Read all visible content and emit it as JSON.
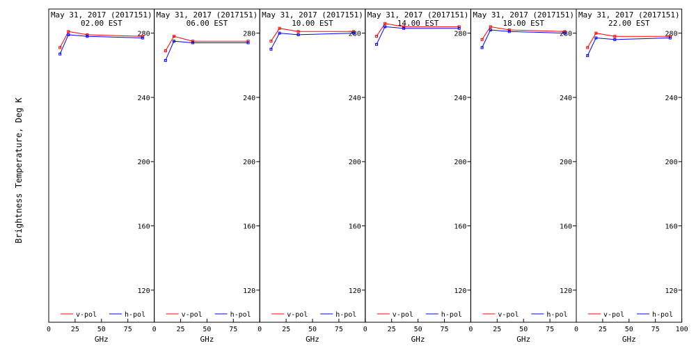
{
  "figure": {
    "ylabel": "Brightness Temperature, Deg K",
    "xlabel": "GHz"
  },
  "chart_data": {
    "type": "line",
    "xlim": [
      0,
      100
    ],
    "ylim": [
      100,
      295
    ],
    "xticks": [
      0,
      25,
      50,
      75,
      100
    ],
    "yticks": [
      120,
      160,
      200,
      240,
      280
    ],
    "series_colors": {
      "v-pol": "#ff0000",
      "h-pol": "#0000ff"
    },
    "legend": [
      "v-pol",
      "h-pol"
    ],
    "panels": [
      {
        "title1": "May 31, 2017 (2017151)",
        "title2": "02.00 EST",
        "series": [
          {
            "name": "v-pol",
            "x": [
              10.7,
              18.7,
              36.5,
              89
            ],
            "y": [
              271,
              281,
              279,
              278
            ]
          },
          {
            "name": "h-pol",
            "x": [
              10.7,
              18.7,
              36.5,
              89
            ],
            "y": [
              267,
              279,
              278,
              277
            ]
          }
        ]
      },
      {
        "title1": "May 31, 2017 (2017151)",
        "title2": "06.00 EST",
        "series": [
          {
            "name": "v-pol",
            "x": [
              10.7,
              18.7,
              36.5,
              89
            ],
            "y": [
              269,
              278,
              275,
              275
            ]
          },
          {
            "name": "h-pol",
            "x": [
              10.7,
              18.7,
              36.5,
              89
            ],
            "y": [
              263,
              275,
              274,
              274
            ]
          }
        ]
      },
      {
        "title1": "May 31, 2017 (2017151)",
        "title2": "10.00 EST",
        "series": [
          {
            "name": "v-pol",
            "x": [
              10.7,
              18.7,
              36.5,
              89
            ],
            "y": [
              275,
              283,
              281,
              281
            ]
          },
          {
            "name": "h-pol",
            "x": [
              10.7,
              18.7,
              36.5,
              89
            ],
            "y": [
              270,
              280,
              279,
              280
            ]
          }
        ]
      },
      {
        "title1": "May 31, 2017 (2017151)",
        "title2": "14.00 EST",
        "series": [
          {
            "name": "v-pol",
            "x": [
              10.7,
              18.7,
              36.5,
              89
            ],
            "y": [
              278,
              286,
              284,
              284
            ]
          },
          {
            "name": "h-pol",
            "x": [
              10.7,
              18.7,
              36.5,
              89
            ],
            "y": [
              273,
              284,
              283,
              283
            ]
          }
        ]
      },
      {
        "title1": "May 31, 2017 (2017151)",
        "title2": "18.00 EST",
        "series": [
          {
            "name": "v-pol",
            "x": [
              10.7,
              18.7,
              36.5,
              89
            ],
            "y": [
              276,
              284,
              282,
              281
            ]
          },
          {
            "name": "h-pol",
            "x": [
              10.7,
              18.7,
              36.5,
              89
            ],
            "y": [
              271,
              282,
              281,
              280
            ]
          }
        ]
      },
      {
        "title1": "May 31, 2017 (2017151)",
        "title2": "22.00 EST",
        "series": [
          {
            "name": "v-pol",
            "x": [
              10.7,
              18.7,
              36.5,
              89
            ],
            "y": [
              271,
              280,
              278,
              278
            ]
          },
          {
            "name": "h-pol",
            "x": [
              10.7,
              18.7,
              36.5,
              89
            ],
            "y": [
              266,
              277,
              276,
              277
            ]
          }
        ]
      }
    ]
  }
}
